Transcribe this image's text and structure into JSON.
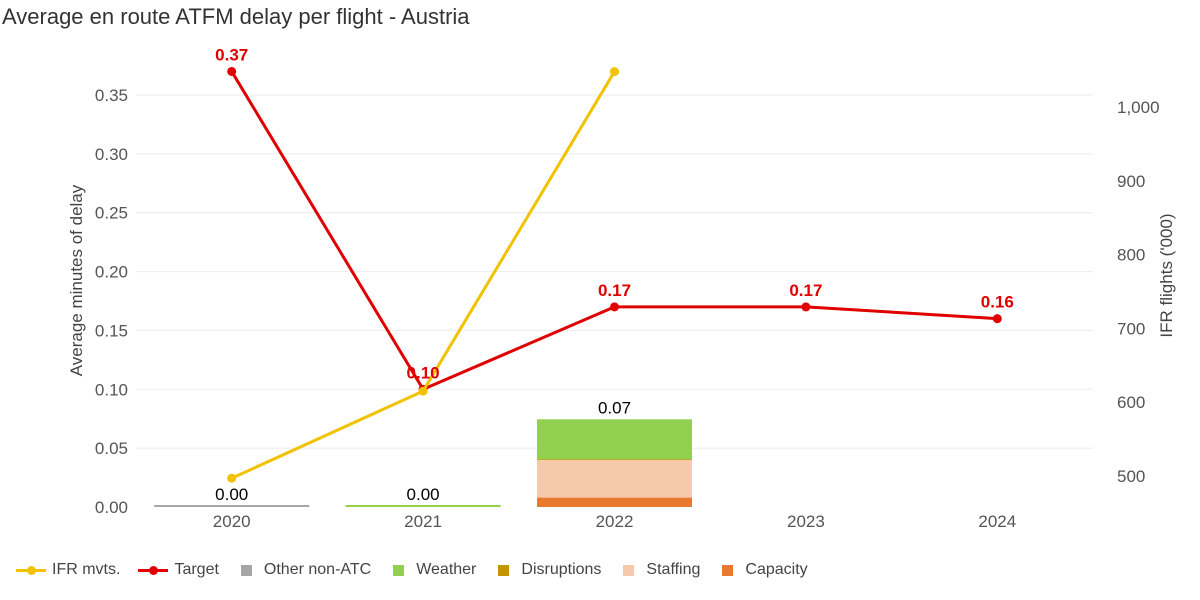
{
  "chart_data": {
    "type": "bar",
    "title": "Average en route ATFM delay per flight - Austria",
    "ylabel": "Average minutes of delay",
    "y2label": "IFR flights ('000)",
    "ylim": [
      0,
      0.37
    ],
    "y2lim": [
      455,
      1040
    ],
    "yticks": [
      "0.00",
      "0.05",
      "0.10",
      "0.15",
      "0.20",
      "0.25",
      "0.30",
      "0.35"
    ],
    "y2ticks": [
      "500",
      "600",
      "700",
      "800",
      "900",
      "1,000"
    ],
    "categories": [
      "2020",
      "2021",
      "2022",
      "2023",
      "2024"
    ],
    "bar_series": [
      {
        "name": "Capacity",
        "color": "#e8792f",
        "values": [
          0,
          0,
          0.008,
          null,
          null
        ]
      },
      {
        "name": "Staffing",
        "color": "#f6c9ab",
        "values": [
          0,
          0,
          0.032,
          null,
          null
        ]
      },
      {
        "name": "Disruptions",
        "color": "#c39500",
        "values": [
          0,
          0,
          0.0005,
          null,
          null
        ]
      },
      {
        "name": "Weather",
        "color": "#92d050",
        "values": [
          0,
          0.001,
          0.034,
          null,
          null
        ]
      },
      {
        "name": "Other non-ATC",
        "color": "#a6a6a6",
        "values": [
          0.001,
          0,
          0,
          null,
          null
        ]
      }
    ],
    "bar_totals": [
      "0.00",
      "0.00",
      "0.07",
      null,
      null
    ],
    "line_series": [
      {
        "name": "Target",
        "color": "#e00000",
        "axis": "left",
        "values": [
          0.37,
          0.1,
          0.17,
          0.17,
          0.16
        ],
        "labels": [
          "0.37",
          "0.10",
          "0.17",
          "0.17",
          "0.16"
        ]
      },
      {
        "name": "IFR mvts.",
        "color": "#f2c200",
        "axis": "right",
        "values": [
          497,
          615,
          1048,
          null,
          null
        ]
      }
    ],
    "legend": [
      {
        "label": "IFR mvts.",
        "kind": "line",
        "color": "#f2c200"
      },
      {
        "label": "Target",
        "kind": "line",
        "color": "#e00000"
      },
      {
        "label": "Other non-ATC",
        "kind": "box",
        "color": "#a6a6a6"
      },
      {
        "label": "Weather",
        "kind": "box",
        "color": "#92d050"
      },
      {
        "label": "Disruptions",
        "kind": "box",
        "color": "#c39500"
      },
      {
        "label": "Staffing",
        "kind": "box",
        "color": "#f6c9ab"
      },
      {
        "label": "Capacity",
        "kind": "box",
        "color": "#e8792f"
      }
    ],
    "legend_position": "bottom-left",
    "grid": true
  }
}
